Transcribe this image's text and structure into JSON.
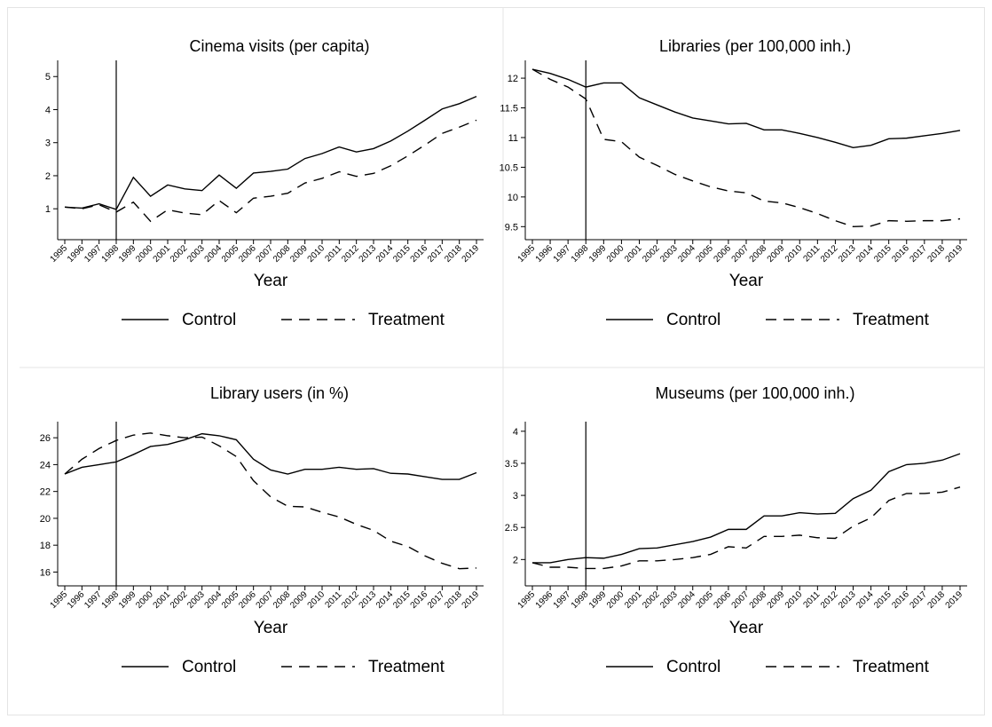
{
  "chart_data": [
    {
      "type": "line",
      "title": "Cinema visits (per capita)",
      "x_label": "Year",
      "x": [
        1995,
        1996,
        1997,
        1998,
        1999,
        2000,
        2001,
        2002,
        2003,
        2004,
        2005,
        2006,
        2007,
        2008,
        2009,
        2010,
        2011,
        2012,
        2013,
        2014,
        2015,
        2016,
        2017,
        2018,
        2019
      ],
      "xlim": [
        1995,
        2019
      ],
      "ylim": [
        0.28,
        5.49
      ],
      "yticks": [
        1,
        2,
        3,
        4,
        5
      ],
      "vline": 1998,
      "series": [
        {
          "name": "Control",
          "color": "#000000",
          "dash": "solid",
          "values": [
            1.05,
            1.02,
            1.15,
            0.98,
            1.95,
            1.38,
            1.72,
            1.6,
            1.55,
            2.02,
            1.62,
            2.08,
            2.13,
            2.2,
            2.52,
            2.67,
            2.87,
            2.72,
            2.82,
            3.05,
            3.35,
            3.68,
            4.02,
            4.18,
            4.4
          ]
        },
        {
          "name": "Treatment",
          "color": "#000000",
          "dash": "dashed",
          "values": [
            1.05,
            1.0,
            1.12,
            0.9,
            1.2,
            0.62,
            0.97,
            0.87,
            0.82,
            1.25,
            0.88,
            1.32,
            1.38,
            1.47,
            1.78,
            1.92,
            2.12,
            1.98,
            2.07,
            2.3,
            2.6,
            2.93,
            3.28,
            3.47,
            3.68
          ]
        }
      ]
    },
    {
      "type": "line",
      "title": "Libraries (per 100,000 inh.)",
      "x_label": "Year",
      "x": [
        1995,
        1996,
        1997,
        1998,
        1999,
        2000,
        2001,
        2002,
        2003,
        2004,
        2005,
        2006,
        2007,
        2008,
        2009,
        2010,
        2011,
        2012,
        2013,
        2014,
        2015,
        2016,
        2017,
        2018,
        2019
      ],
      "xlim": [
        1995,
        2019
      ],
      "ylim": [
        9.4,
        12.3
      ],
      "yticks": [
        9.5,
        10,
        10.5,
        11,
        11.5,
        12
      ],
      "vline": 1998,
      "series": [
        {
          "name": "Control",
          "color": "#000000",
          "dash": "solid",
          "values": [
            12.15,
            12.08,
            11.98,
            11.85,
            11.92,
            11.92,
            11.67,
            11.55,
            11.43,
            11.33,
            11.28,
            11.23,
            11.24,
            11.13,
            11.13,
            11.07,
            11.0,
            10.92,
            10.83,
            10.87,
            10.98,
            10.99,
            11.03,
            11.07,
            11.12
          ]
        },
        {
          "name": "Treatment",
          "color": "#000000",
          "dash": "dashed",
          "values": [
            12.15,
            11.98,
            11.85,
            11.65,
            10.97,
            10.93,
            10.67,
            10.53,
            10.38,
            10.27,
            10.17,
            10.1,
            10.07,
            9.93,
            9.9,
            9.82,
            9.72,
            9.6,
            9.5,
            9.51,
            9.6,
            9.59,
            9.6,
            9.6,
            9.63
          ]
        }
      ]
    },
    {
      "type": "line",
      "title": "Library users (in %)",
      "x_label": "Year",
      "x": [
        1995,
        1996,
        1997,
        1998,
        1999,
        2000,
        2001,
        2002,
        2003,
        2004,
        2005,
        2006,
        2007,
        2008,
        2009,
        2010,
        2011,
        2012,
        2013,
        2014,
        2015,
        2016,
        2017,
        2018,
        2019
      ],
      "xlim": [
        1995,
        2019
      ],
      "ylim": [
        15.5,
        27.2
      ],
      "yticks": [
        16,
        18,
        20,
        22,
        24,
        26
      ],
      "vline": 1998,
      "series": [
        {
          "name": "Control",
          "color": "#000000",
          "dash": "solid",
          "values": [
            23.3,
            23.8,
            24.0,
            24.2,
            24.75,
            25.35,
            25.5,
            25.85,
            26.3,
            26.15,
            25.85,
            24.4,
            23.6,
            23.3,
            23.65,
            23.65,
            23.8,
            23.65,
            23.7,
            23.35,
            23.3,
            23.1,
            22.9,
            22.9,
            23.4
          ]
        },
        {
          "name": "Treatment",
          "color": "#000000",
          "dash": "dashed",
          "values": [
            23.3,
            24.4,
            25.2,
            25.8,
            26.2,
            26.35,
            26.15,
            26.0,
            26.05,
            25.4,
            24.6,
            22.8,
            21.6,
            20.9,
            20.85,
            20.45,
            20.1,
            19.55,
            19.1,
            18.3,
            17.9,
            17.2,
            16.65,
            16.25,
            16.3
          ]
        }
      ]
    },
    {
      "type": "line",
      "title": "Museums (per 100,000 inh.)",
      "x_label": "Year",
      "x": [
        1995,
        1996,
        1997,
        1998,
        1999,
        2000,
        2001,
        2002,
        2003,
        2004,
        2005,
        2006,
        2007,
        2008,
        2009,
        2010,
        2011,
        2012,
        2013,
        2014,
        2015,
        2016,
        2017,
        2018,
        2019
      ],
      "xlim": [
        1995,
        2019
      ],
      "ylim": [
        1.7,
        4.15
      ],
      "yticks": [
        2,
        2.5,
        3,
        3.5,
        4
      ],
      "vline": 1998,
      "series": [
        {
          "name": "Control",
          "color": "#000000",
          "dash": "solid",
          "values": [
            1.95,
            1.95,
            2.0,
            2.03,
            2.02,
            2.08,
            2.17,
            2.18,
            2.23,
            2.28,
            2.35,
            2.47,
            2.47,
            2.68,
            2.68,
            2.73,
            2.71,
            2.72,
            2.95,
            3.08,
            3.37,
            3.48,
            3.5,
            3.55,
            3.65
          ]
        },
        {
          "name": "Treatment",
          "color": "#000000",
          "dash": "dashed",
          "values": [
            1.95,
            1.88,
            1.88,
            1.86,
            1.86,
            1.9,
            1.98,
            1.98,
            2.0,
            2.03,
            2.08,
            2.2,
            2.18,
            2.36,
            2.36,
            2.38,
            2.34,
            2.33,
            2.52,
            2.65,
            2.92,
            3.03,
            3.03,
            3.05,
            3.13
          ]
        }
      ]
    }
  ]
}
